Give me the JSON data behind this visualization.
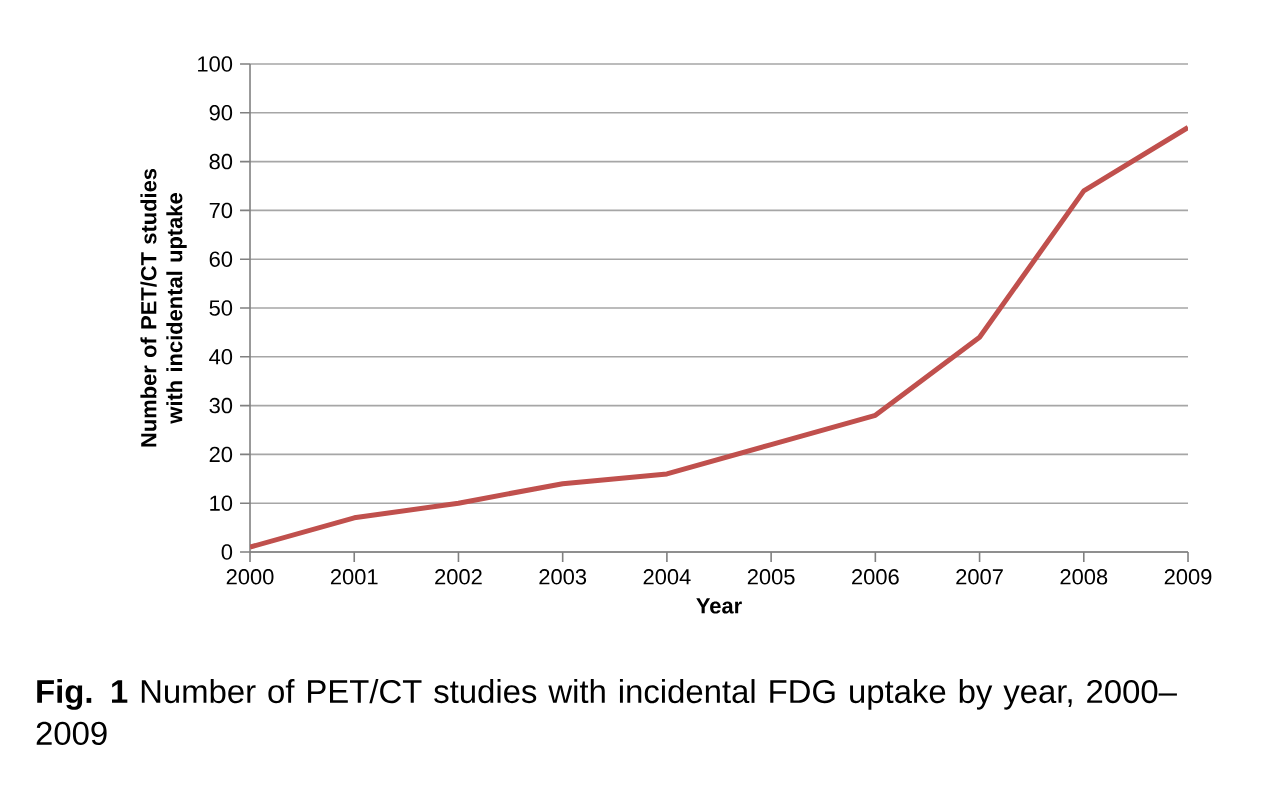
{
  "chart_data": {
    "type": "line",
    "x": [
      2000,
      2001,
      2002,
      2003,
      2004,
      2005,
      2006,
      2007,
      2008,
      2009
    ],
    "series": [
      {
        "color": "#c0504d",
        "values": [
          1,
          7,
          10,
          14,
          16,
          22,
          28,
          44,
          74,
          87
        ]
      }
    ],
    "xlim": [
      2000,
      2009
    ],
    "xticks": [
      2000,
      2001,
      2002,
      2003,
      2004,
      2005,
      2006,
      2007,
      2008,
      2009
    ],
    "ylim": [
      0,
      100
    ],
    "yticks": [
      0,
      10,
      20,
      30,
      40,
      50,
      60,
      70,
      80,
      90,
      100
    ],
    "xlabel": "Year",
    "ylabel": "Number of PET/CT studies with incidental uptake",
    "grid": "y",
    "marker": "none",
    "line_style": "solid",
    "annotations": [
      "**Fig. 1** Number of PET/CT studies with incidental FDG uptake by year, 2000–2009"
    ]
  }
}
